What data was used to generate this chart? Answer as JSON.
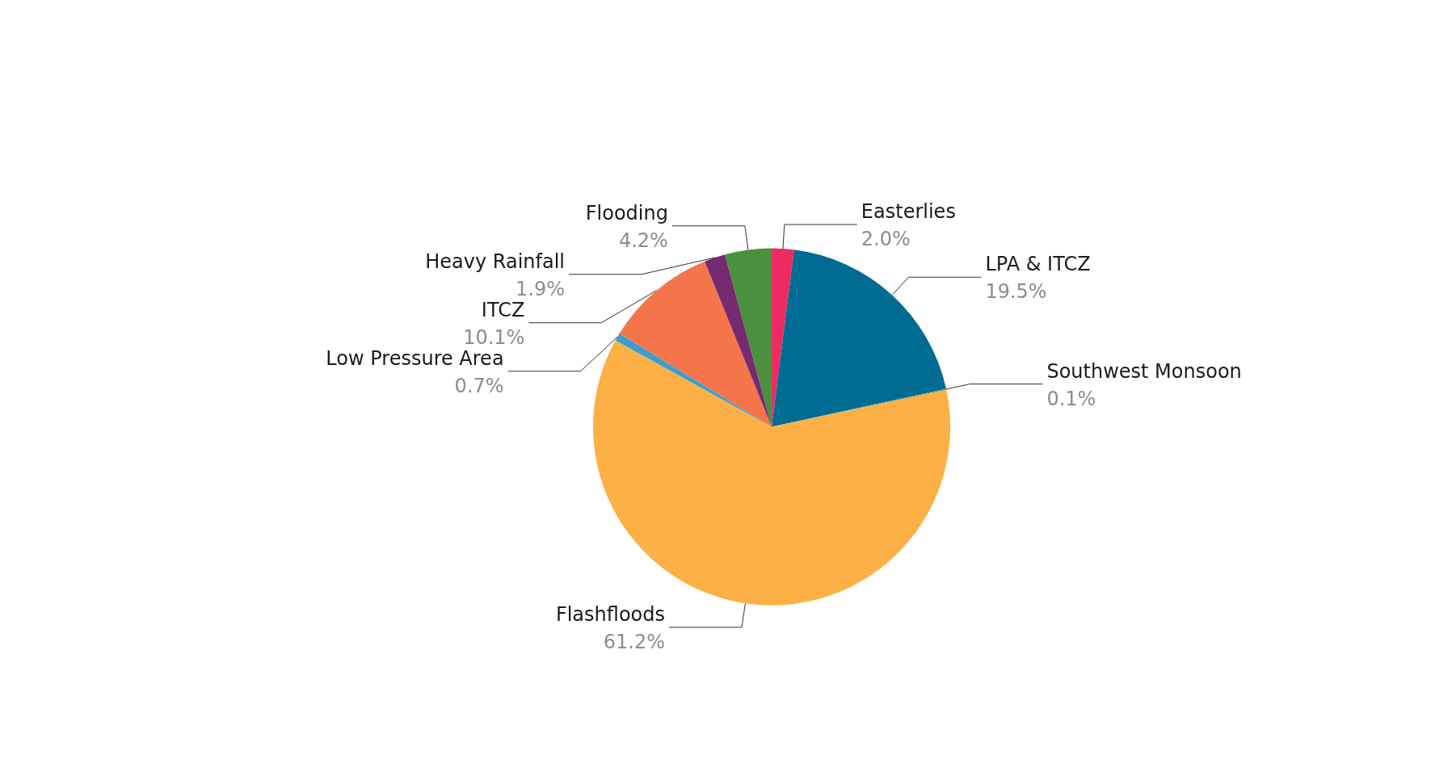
{
  "chart_data": {
    "type": "pie",
    "categories": [
      "Easterlies",
      "LPA & ITCZ",
      "Southwest Monsoon",
      "Flashfloods",
      "Low Pressure Area",
      "ITCZ",
      "Heavy Rainfall",
      "Flooding"
    ],
    "values": [
      2.0,
      19.5,
      0.1,
      61.2,
      0.7,
      10.1,
      1.9,
      4.2
    ],
    "value_labels": [
      "2.0%",
      "19.5%",
      "0.1%",
      "61.2%",
      "0.7%",
      "10.1%",
      "1.9%",
      "4.2%"
    ],
    "colors": [
      "#ee2a62",
      "#006b93",
      "#2b8a8a",
      "#fdb046",
      "#3a9fcf",
      "#f5754a",
      "#762a6f",
      "#4a903e"
    ],
    "legend": false
  }
}
